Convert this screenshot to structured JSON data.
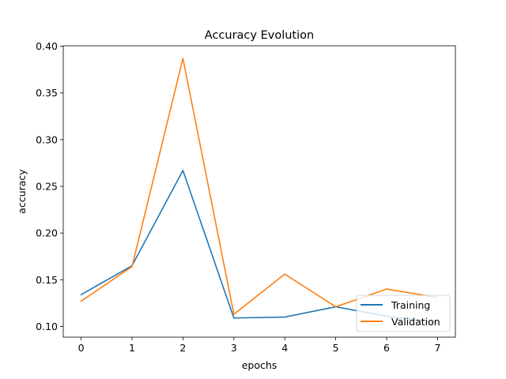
{
  "chart_data": {
    "type": "line",
    "title": "Accuracy Evolution",
    "xlabel": "epochs",
    "ylabel": "accuracy",
    "x": [
      0,
      1,
      2,
      3,
      4,
      5,
      6,
      7
    ],
    "xlim": [
      -0.35,
      7.35
    ],
    "ylim": [
      0.0885,
      0.4005
    ],
    "xticks": [
      0,
      1,
      2,
      3,
      4,
      5,
      6,
      7
    ],
    "yticks": [
      0.1,
      0.15,
      0.2,
      0.25,
      0.3,
      0.35,
      0.4
    ],
    "ytick_labels": [
      "0.10",
      "0.15",
      "0.20",
      "0.25",
      "0.30",
      "0.35",
      "0.40"
    ],
    "grid": false,
    "legend_position": "bottom-right",
    "series": [
      {
        "name": "Training",
        "color": "#1f77b4",
        "values": [
          0.134,
          0.165,
          0.267,
          0.109,
          0.11,
          0.121,
          0.111,
          0.104
        ]
      },
      {
        "name": "Validation",
        "color": "#ff7f0e",
        "values": [
          0.127,
          0.164,
          0.387,
          0.113,
          0.156,
          0.121,
          0.14,
          0.131
        ]
      }
    ]
  }
}
